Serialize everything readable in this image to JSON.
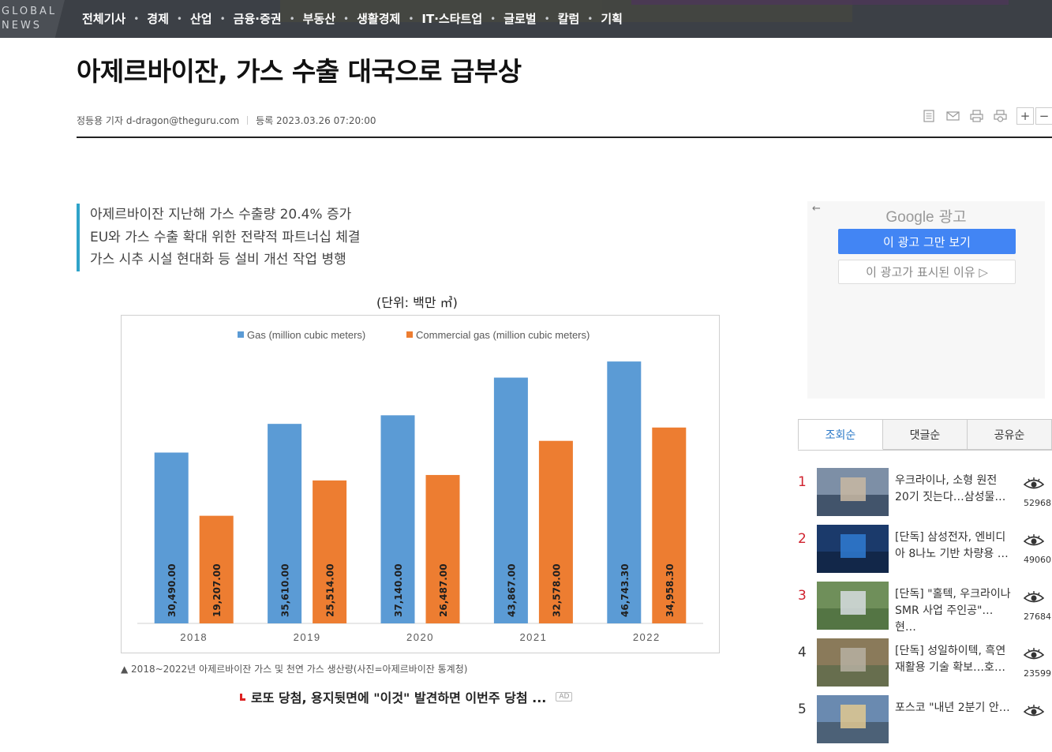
{
  "header": {
    "logo": "GLOBAL\nNEWS",
    "nav": [
      "전체기사",
      "경제",
      "산업",
      "금융·증권",
      "부동산",
      "생활경제",
      "IT·스타트업",
      "글로벌",
      "칼럼",
      "기획"
    ]
  },
  "article": {
    "headline": "아제르바이잔, 가스 수출 대국으로 급부상",
    "reporter": "정등용 기자 d-dragon@theguru.com",
    "registered": "등록 2023.03.26 07:20:00",
    "summary": [
      "아제르바이잔 지난해 가스 수출량 20.4% 증가",
      "EU와 가스 수출 확대 위한 전략적 파트너십 체결",
      "가스 시추 시설 현대화 등 설비 개선 작업 병행"
    ],
    "chart_unit": "(단위: 백만 ㎥)",
    "caption": "▲ 2018~2022년 아제르바이잔 가스 및 천연 가스 생산량(사진=아제르바이잔 통계청)"
  },
  "toolbar": {
    "icons": [
      "article-icon",
      "mail-icon",
      "print-icon",
      "copy-icon"
    ],
    "zoom_in": "+",
    "zoom_out": "−"
  },
  "chart_data": {
    "type": "bar",
    "categories": [
      "2018",
      "2019",
      "2020",
      "2021",
      "2022"
    ],
    "series": [
      {
        "name": "Gas (million cubic meters)",
        "values": [
          30490.0,
          35610.0,
          37140.0,
          43867.0,
          46743.3
        ],
        "labels": [
          "30,490.00",
          "35,610.00",
          "37,140.00",
          "43,867.00",
          "46,743.30"
        ],
        "color": "#5b9bd5"
      },
      {
        "name": "Commercial gas (million cubic meters)",
        "values": [
          19207.0,
          25514.0,
          26487.0,
          32578.0,
          34958.3
        ],
        "labels": [
          "19,207.00",
          "25,514.00",
          "26,487.00",
          "32,578.00",
          "34,958.30"
        ],
        "color": "#ed7d31"
      }
    ],
    "ylim": [
      0,
      50000
    ],
    "grid": false,
    "legend": "top"
  },
  "ad": {
    "lotto_text": "로또 당첨, 용지뒷면에 \"이것\" 발견하면 이번주 당첨 ...",
    "ad_badge": "AD",
    "google_brand": "Google",
    "google_suffix": "광고",
    "back": "←",
    "stop_button": "이 광고 그만 보기",
    "why_button": "이 광고가 표시된 이유 ▷"
  },
  "ranking": {
    "tabs": [
      "조회순",
      "댓글순",
      "공유순"
    ],
    "items": [
      {
        "rank": "1",
        "title": "우크라이나, 소형 원전 20기 짓는다…삼성물…",
        "views": "52968"
      },
      {
        "rank": "2",
        "title": "[단독] 삼성전자, 엔비디아 8나노 기반 차량용 …",
        "views": "49060"
      },
      {
        "rank": "3",
        "title": "[단독] \"홀텍, 우크라이나 SMR 사업 주인공\"…현…",
        "views": "27684"
      },
      {
        "rank": "4",
        "title": "[단독] 성일하이텍, 흑연 재활용 기술 확보…호…",
        "views": "23599"
      },
      {
        "rank": "5",
        "title": "포스코 \"내년 2분기 안…",
        "views": ""
      }
    ],
    "eye_icon": "eye-icon",
    "colors": {
      "top_rank": "#d0222e",
      "active_tab": "#2a78c7"
    }
  }
}
